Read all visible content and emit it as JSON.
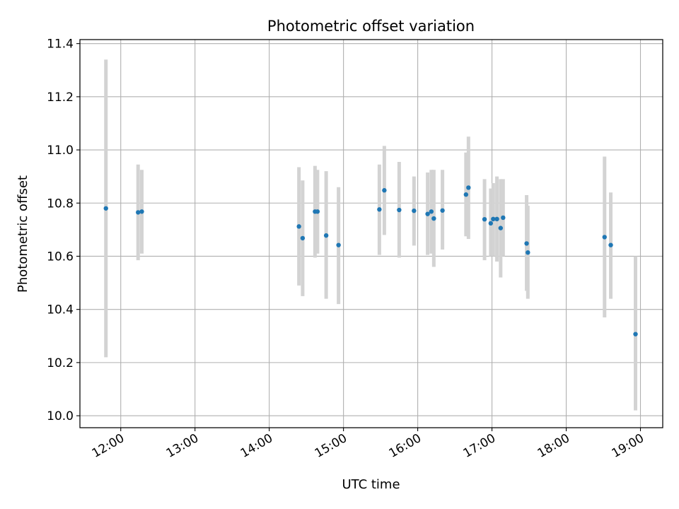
{
  "chart_data": {
    "type": "scatter",
    "title": "Photometric offset variation",
    "xlabel": "UTC time",
    "ylabel": "Photometric offset",
    "xlim": [
      "11:27",
      "19:18"
    ],
    "ylim": [
      9.955,
      11.415
    ],
    "x_ticks": [
      "12:00",
      "13:00",
      "14:00",
      "15:00",
      "16:00",
      "17:00",
      "18:00",
      "19:00"
    ],
    "y_ticks": [
      "10.0",
      "10.2",
      "10.4",
      "10.6",
      "10.8",
      "11.0",
      "11.2",
      "11.4"
    ],
    "grid": true,
    "marker_color": "#1f77b4",
    "errorbar_color": "#d3d3d3",
    "series": [
      {
        "points": [
          {
            "x": "11:48",
            "y": 10.78,
            "lo": 10.22,
            "hi": 11.34
          },
          {
            "x": "12:14",
            "y": 10.765,
            "lo": 10.585,
            "hi": 10.945
          },
          {
            "x": "12:17",
            "y": 10.768,
            "lo": 10.61,
            "hi": 10.925
          },
          {
            "x": "14:24",
            "y": 10.712,
            "lo": 10.49,
            "hi": 10.935
          },
          {
            "x": "14:27",
            "y": 10.668,
            "lo": 10.45,
            "hi": 10.885
          },
          {
            "x": "14:37",
            "y": 10.768,
            "lo": 10.595,
            "hi": 10.94
          },
          {
            "x": "14:39",
            "y": 10.768,
            "lo": 10.61,
            "hi": 10.925
          },
          {
            "x": "14:46",
            "y": 10.678,
            "lo": 10.44,
            "hi": 10.92
          },
          {
            "x": "14:56",
            "y": 10.642,
            "lo": 10.42,
            "hi": 10.86
          },
          {
            "x": "15:29",
            "y": 10.776,
            "lo": 10.605,
            "hi": 10.945
          },
          {
            "x": "15:33",
            "y": 10.848,
            "lo": 10.68,
            "hi": 11.015
          },
          {
            "x": "15:45",
            "y": 10.774,
            "lo": 10.595,
            "hi": 10.955
          },
          {
            "x": "15:57",
            "y": 10.771,
            "lo": 10.64,
            "hi": 10.9
          },
          {
            "x": "16:08",
            "y": 10.759,
            "lo": 10.605,
            "hi": 10.915
          },
          {
            "x": "16:11",
            "y": 10.768,
            "lo": 10.61,
            "hi": 10.925
          },
          {
            "x": "16:13",
            "y": 10.742,
            "lo": 10.56,
            "hi": 10.925
          },
          {
            "x": "16:20",
            "y": 10.772,
            "lo": 10.625,
            "hi": 10.925
          },
          {
            "x": "16:39",
            "y": 10.832,
            "lo": 10.675,
            "hi": 10.99
          },
          {
            "x": "16:41",
            "y": 10.858,
            "lo": 10.665,
            "hi": 11.05
          },
          {
            "x": "16:54",
            "y": 10.739,
            "lo": 10.585,
            "hi": 10.89
          },
          {
            "x": "16:59",
            "y": 10.724,
            "lo": 10.6,
            "hi": 10.855
          },
          {
            "x": "17:01",
            "y": 10.74,
            "lo": 10.6,
            "hi": 10.875
          },
          {
            "x": "17:04",
            "y": 10.74,
            "lo": 10.58,
            "hi": 10.9
          },
          {
            "x": "17:07",
            "y": 10.706,
            "lo": 10.52,
            "hi": 10.89
          },
          {
            "x": "17:09",
            "y": 10.745,
            "lo": 10.6,
            "hi": 10.89
          },
          {
            "x": "17:28",
            "y": 10.648,
            "lo": 10.47,
            "hi": 10.83
          },
          {
            "x": "17:29",
            "y": 10.614,
            "lo": 10.44,
            "hi": 10.79
          },
          {
            "x": "18:31",
            "y": 10.672,
            "lo": 10.37,
            "hi": 10.975
          },
          {
            "x": "18:36",
            "y": 10.642,
            "lo": 10.44,
            "hi": 10.84
          },
          {
            "x": "18:56",
            "y": 10.307,
            "lo": 10.02,
            "hi": 10.6
          }
        ]
      }
    ]
  }
}
